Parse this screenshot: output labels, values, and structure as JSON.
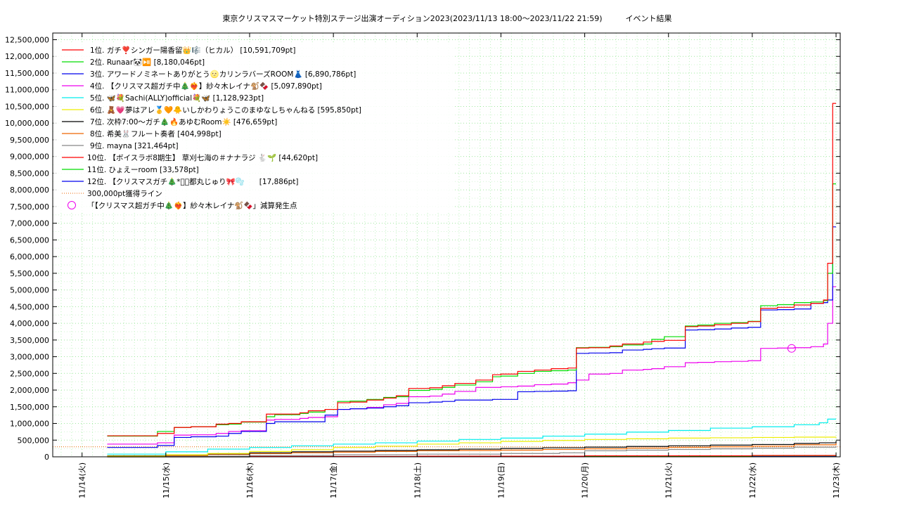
{
  "chart_data": {
    "type": "line",
    "title": "東京クリスマスマーケット特別ステージ出演オーディション2023(2023/11/13 18:00～2023/11/22 21:59)　　　イベント結果",
    "y_ticks": [
      "0",
      "500,000",
      "1,000,000",
      "1,500,000",
      "2,000,000",
      "2,500,000",
      "3,000,000",
      "3,500,000",
      "4,000,000",
      "4,500,000",
      "5,000,000",
      "5,500,000",
      "6,000,000",
      "6,500,000",
      "7,000,000",
      "7,500,000",
      "8,000,000",
      "8,500,000",
      "9,000,000",
      "9,500,000",
      "10,000,000",
      "10,500,000",
      "11,000,000",
      "11,500,000",
      "12,000,000",
      "12,500,000"
    ],
    "x_ticks": [
      "11/14(火)",
      "11/15(水)",
      "11/16(木)",
      "11/17(金)",
      "11/18(土)",
      "11/19(日)",
      "11/20(月)",
      "11/21(火)",
      "11/22(水)",
      "11/23(木)"
    ],
    "ylim": [
      0,
      12700000
    ],
    "xlim_days": [
      -0.35,
      9.05
    ],
    "grid": true,
    "legend_position": "top-left",
    "series": [
      {
        "name": "1位. ガチ❣️シンガー陽香留👑🎼（ヒカル） [10,591,709pt]",
        "color": "#ff0000",
        "x": [
          0.3,
          0.9,
          1.1,
          1.3,
          1.6,
          1.75,
          1.9,
          2.2,
          2.3,
          2.6,
          2.7,
          2.9,
          3.05,
          3.2,
          3.4,
          3.6,
          3.75,
          3.9,
          4.15,
          4.3,
          4.45,
          4.7,
          4.9,
          5.0,
          5.2,
          5.4,
          5.6,
          5.8,
          5.9,
          6.05,
          6.3,
          6.45,
          6.7,
          6.8,
          6.95,
          7.2,
          7.35,
          7.55,
          7.75,
          7.95,
          8.1,
          8.3,
          8.5,
          8.7,
          8.85,
          8.9,
          8.96,
          9.0
        ],
        "y": [
          630000,
          700000,
          880000,
          900000,
          980000,
          1000000,
          1050000,
          1280000,
          1280000,
          1320000,
          1380000,
          1420000,
          1620000,
          1640000,
          1700000,
          1760000,
          1830000,
          2050000,
          2070000,
          2130000,
          2200000,
          2300000,
          2460000,
          2480000,
          2560000,
          2600000,
          2640000,
          2660000,
          3260000,
          3270000,
          3320000,
          3380000,
          3440000,
          3460000,
          3490000,
          3900000,
          3920000,
          3960000,
          4000000,
          4050000,
          4450000,
          4480000,
          4550000,
          4600000,
          4700000,
          5800000,
          10591709,
          10591709
        ]
      },
      {
        "name": "2位. Runaar🐼⏯️ [8,180,046pt]",
        "color": "#00dd00",
        "x": [
          0.3,
          0.9,
          1.1,
          1.3,
          1.6,
          1.75,
          1.9,
          2.2,
          2.3,
          2.6,
          2.7,
          2.9,
          3.05,
          3.2,
          3.4,
          3.6,
          3.75,
          3.9,
          4.15,
          4.3,
          4.45,
          4.7,
          4.9,
          5.0,
          5.2,
          5.4,
          5.6,
          5.8,
          5.9,
          6.05,
          6.3,
          6.45,
          6.7,
          6.8,
          6.95,
          7.2,
          7.35,
          7.55,
          7.75,
          7.95,
          8.1,
          8.3,
          8.5,
          8.7,
          8.85,
          8.9,
          8.96,
          9.0
        ],
        "y": [
          620000,
          760000,
          880000,
          900000,
          960000,
          980000,
          1040000,
          1200000,
          1260000,
          1300000,
          1340000,
          1420000,
          1660000,
          1670000,
          1720000,
          1780000,
          1800000,
          1990000,
          2020000,
          2080000,
          2150000,
          2250000,
          2400000,
          2420000,
          2500000,
          2560000,
          2580000,
          2600000,
          3270000,
          3280000,
          3300000,
          3350000,
          3380000,
          3520000,
          3600000,
          3920000,
          3950000,
          4000000,
          4020000,
          4060000,
          4530000,
          4560000,
          4620000,
          4640000,
          4680000,
          5500000,
          8180046,
          8180046
        ]
      },
      {
        "name": "3位. アワードノミネートありがとう🌝カリンラバーズROOM👗 [6,890,786pt]",
        "color": "#0000ee",
        "x": [
          0.3,
          0.9,
          1.1,
          1.3,
          1.6,
          1.75,
          1.9,
          2.2,
          2.3,
          2.6,
          2.7,
          2.9,
          3.05,
          3.2,
          3.4,
          3.6,
          3.75,
          3.9,
          4.15,
          4.3,
          4.45,
          4.7,
          4.9,
          5.0,
          5.2,
          5.4,
          5.6,
          5.8,
          5.9,
          6.05,
          6.3,
          6.45,
          6.7,
          6.8,
          6.95,
          7.2,
          7.35,
          7.55,
          7.75,
          7.95,
          8.1,
          8.3,
          8.5,
          8.7,
          8.85,
          8.9,
          8.96,
          9.0
        ],
        "y": [
          280000,
          340000,
          580000,
          600000,
          620000,
          700000,
          760000,
          1000000,
          1050000,
          1050000,
          1050000,
          1250000,
          1420000,
          1440000,
          1460000,
          1500000,
          1530000,
          1620000,
          1640000,
          1660000,
          1700000,
          1700000,
          1720000,
          1720000,
          1950000,
          1960000,
          1970000,
          1980000,
          3100000,
          3110000,
          3120000,
          3200000,
          3220000,
          3240000,
          3260000,
          3800000,
          3810000,
          3830000,
          3860000,
          3880000,
          4400000,
          4410000,
          4430000,
          4600000,
          4620000,
          4700000,
          6890786,
          6890786
        ]
      },
      {
        "name": "4位. 【クリスマス超ガチ中🎄❤️‍🔥】紗々木レイナ🐒🍫 [5,097,890pt]",
        "color": "#ee00ee",
        "x": [
          0.3,
          0.9,
          1.1,
          1.3,
          1.6,
          1.75,
          1.9,
          2.2,
          2.3,
          2.6,
          2.7,
          2.9,
          3.05,
          3.2,
          3.4,
          3.6,
          3.75,
          3.9,
          4.15,
          4.3,
          4.45,
          4.7,
          4.9,
          5.0,
          5.2,
          5.4,
          5.6,
          5.8,
          5.9,
          6.05,
          6.3,
          6.45,
          6.7,
          6.8,
          6.95,
          7.2,
          7.35,
          7.55,
          7.75,
          7.95,
          8.1,
          8.3,
          8.5,
          8.7,
          8.85,
          8.9,
          8.96,
          9.0
        ],
        "y": [
          380000,
          420000,
          650000,
          660000,
          700000,
          760000,
          780000,
          1100000,
          1120000,
          1150000,
          1180000,
          1200000,
          1420000,
          1440000,
          1480000,
          1560000,
          1600000,
          1800000,
          1820000,
          1880000,
          1960000,
          2080000,
          2080000,
          2100000,
          2120000,
          2160000,
          2180000,
          2220000,
          2300000,
          2480000,
          2500000,
          2600000,
          2620000,
          2640000,
          2700000,
          2820000,
          2830000,
          2850000,
          2860000,
          2880000,
          3250000,
          3260000,
          3270000,
          3300000,
          3380000,
          4000000,
          5097890,
          5097890
        ]
      },
      {
        "name": "5位. 🦋💐Sachi(ALLY)official💐🦋 [1,128,923pt]",
        "color": "#00eeee",
        "x": [
          0.3,
          1.0,
          1.5,
          2.0,
          2.5,
          3.0,
          3.5,
          4.0,
          4.5,
          5.0,
          5.5,
          6.0,
          6.5,
          7.0,
          7.5,
          8.0,
          8.5,
          8.8,
          8.9,
          9.0
        ],
        "y": [
          80000,
          150000,
          230000,
          280000,
          330000,
          380000,
          420000,
          470000,
          520000,
          560000,
          620000,
          680000,
          740000,
          790000,
          860000,
          900000,
          960000,
          1020000,
          1128923,
          1128923
        ]
      },
      {
        "name": "6位. 🧸💗夢はアレ🥇🧡🐥いしかわりょうこのまゆなしちゃんねる [595,850pt]",
        "color": "#eeee00",
        "x": [
          0.3,
          1.0,
          1.5,
          2.0,
          2.5,
          3.0,
          3.5,
          4.0,
          4.5,
          5.0,
          5.5,
          6.0,
          6.5,
          7.0,
          7.5,
          8.0,
          8.5,
          9.0
        ],
        "y": [
          20000,
          60000,
          100000,
          160000,
          210000,
          280000,
          320000,
          380000,
          420000,
          460000,
          490000,
          520000,
          540000,
          560000,
          570000,
          580000,
          590000,
          595850
        ]
      },
      {
        "name": "7位. 次枠7:00～ガチ🎄🔥あゆむRoom☀️ [476,659pt]",
        "color": "#000000",
        "x": [
          0.3,
          1.0,
          1.5,
          2.0,
          2.5,
          3.0,
          3.5,
          4.0,
          4.5,
          5.0,
          5.5,
          6.0,
          6.5,
          7.0,
          7.5,
          8.0,
          8.5,
          8.8,
          9.0
        ],
        "y": [
          30000,
          60000,
          90000,
          120000,
          150000,
          170000,
          190000,
          210000,
          230000,
          250000,
          270000,
          290000,
          310000,
          330000,
          350000,
          370000,
          400000,
          420000,
          476659
        ]
      },
      {
        "name": "8位. 希美🐰フルート奏者 [404,998pt]",
        "color": "#ee6600",
        "x": [
          0.3,
          1.0,
          1.5,
          2.0,
          2.5,
          3.0,
          3.5,
          4.0,
          4.5,
          5.0,
          5.5,
          6.0,
          6.5,
          7.0,
          7.5,
          8.0,
          8.5,
          9.0
        ],
        "y": [
          10000,
          40000,
          70000,
          100000,
          120000,
          140000,
          160000,
          180000,
          190000,
          200000,
          220000,
          240000,
          260000,
          280000,
          300000,
          320000,
          360000,
          404998
        ]
      },
      {
        "name": "9位. mayna [321,464pt]",
        "color": "#888888",
        "x": [
          0.3,
          1.0,
          2.0,
          3.0,
          4.0,
          5.0,
          5.7,
          6.0,
          6.5,
          7.0,
          7.5,
          8.0,
          8.5,
          9.0
        ],
        "y": [
          5000,
          20000,
          40000,
          60000,
          80000,
          100000,
          120000,
          180000,
          200000,
          220000,
          240000,
          260000,
          290000,
          321464
        ]
      },
      {
        "name": "10位. 【ボイスラボ8期生】 草刈七海の＃ナナラジ 🐇🌱 [44,620pt]",
        "color": "#ff0000",
        "x": [
          0.3,
          2.0,
          4.0,
          6.0,
          8.0,
          9.0
        ],
        "y": [
          0,
          10000,
          20000,
          30000,
          40000,
          44620
        ]
      },
      {
        "name": "11位. ひょえーroom [33,578pt]",
        "color": "#00dd00",
        "x": [
          0.3,
          2.0,
          4.0,
          6.0,
          8.0,
          9.0
        ],
        "y": [
          0,
          8000,
          15000,
          22000,
          30000,
          33578
        ]
      },
      {
        "name": "12位. 【クリスマスガチ🎄*ﾟ】都丸じゅり🎀🫧　　[17,886pt]",
        "color": "#0000ee",
        "x": [
          0.3,
          2.0,
          4.0,
          6.0,
          8.0,
          9.0
        ],
        "y": [
          0,
          3000,
          8000,
          12000,
          16000,
          17886
        ]
      }
    ],
    "reference_line": {
      "name": "300,000pt獲得ライン",
      "value": 300000,
      "color": "#ee6600",
      "style": "dotted"
    },
    "marker": {
      "name": "「【クリスマス超ガチ中🎄❤️‍🔥】紗々木レイナ🐒🍫」減算発生点",
      "x": 8.47,
      "y": 3250000,
      "color": "#ee00ee",
      "shape": "circle"
    }
  }
}
